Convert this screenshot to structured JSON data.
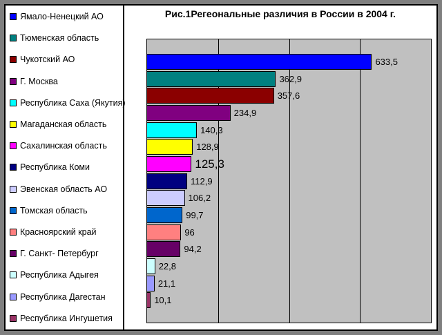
{
  "chart_data": {
    "type": "bar",
    "orientation": "horizontal",
    "title": "Рис.1Регеональные различия в России в 2004 г.",
    "categories": [
      "Ямало-Ненецкий АО",
      "Тюменская область",
      "Чукотский АО",
      "Г. Москва",
      "Республика Саха (Якутия)",
      "Магаданская область",
      "Сахалинская область",
      "Республика Коми",
      "Эвенская область АО",
      "Томская область",
      "Красноярский край",
      "Г. Санкт- Петербург",
      "Республика Адыгея",
      "Республика Дагестан",
      "Республика Ингушетия"
    ],
    "values": [
      633.5,
      362.9,
      357.6,
      234.9,
      140.3,
      128.9,
      125.3,
      112.9,
      106.2,
      99.7,
      96,
      94.2,
      22.8,
      21.1,
      10.1
    ],
    "value_labels": [
      "633,5",
      "362,9",
      "357,6",
      "234,9",
      "140,3",
      "128,9",
      "125,3",
      "112,9",
      "106,2",
      "99,7",
      "96",
      "94,2",
      "22,8",
      "21,1",
      "10,1"
    ],
    "colors": [
      "#0000ff",
      "#008080",
      "#8b0000",
      "#800080",
      "#00ffff",
      "#ffff00",
      "#ff00ff",
      "#000080",
      "#ccccff",
      "#0066cc",
      "#ff8080",
      "#660066",
      "#ccffff",
      "#9999ff",
      "#993366"
    ],
    "emphasized_label_index": 6,
    "xlim": [
      0,
      800
    ],
    "gridline_step": 200,
    "grid": true,
    "legend_position": "left",
    "plot_background": "#c0c0c0",
    "frame_color": "#7f7f7f"
  }
}
